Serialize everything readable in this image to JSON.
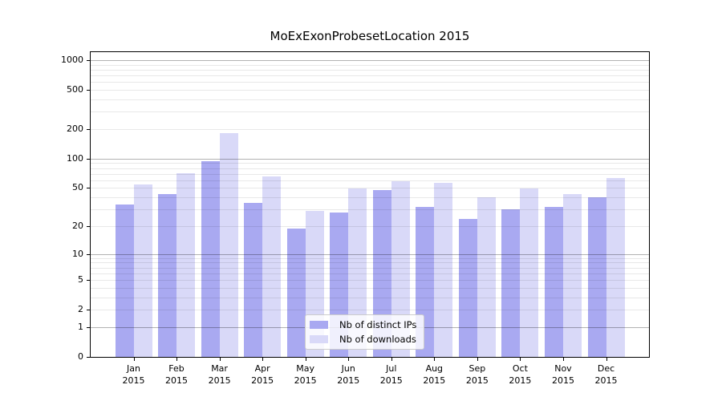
{
  "chart_data": {
    "type": "bar",
    "title": "MoExExonProbesetLocation 2015",
    "year_label": "2015",
    "categories": [
      "Jan",
      "Feb",
      "Mar",
      "Apr",
      "May",
      "Jun",
      "Jul",
      "Aug",
      "Sep",
      "Oct",
      "Nov",
      "Dec"
    ],
    "series": [
      {
        "name": "Nb of distinct IPs",
        "color": "#a9a9f1",
        "values": [
          34,
          43,
          94,
          35,
          19,
          28,
          48,
          32,
          24,
          30,
          32,
          40
        ]
      },
      {
        "name": "Nb of downloads",
        "color": "#d9d9f8",
        "values": [
          54,
          71,
          182,
          66,
          29,
          49,
          59,
          57,
          40,
          49,
          43,
          63
        ]
      }
    ],
    "y_axis": {
      "scale": "log10(1+x)",
      "tick_values": [
        0,
        1,
        2,
        5,
        10,
        20,
        50,
        100,
        200,
        500,
        1000
      ],
      "ylim": [
        0,
        1205
      ],
      "major_gridlines": [
        1,
        10,
        100,
        1000
      ],
      "minor_gridlines": [
        2,
        3,
        4,
        5,
        6,
        7,
        8,
        9,
        20,
        30,
        40,
        50,
        60,
        70,
        80,
        90,
        200,
        300,
        400,
        500,
        600,
        700,
        800,
        900
      ]
    },
    "grid": true,
    "legend_position": "inside-bottom-center"
  }
}
